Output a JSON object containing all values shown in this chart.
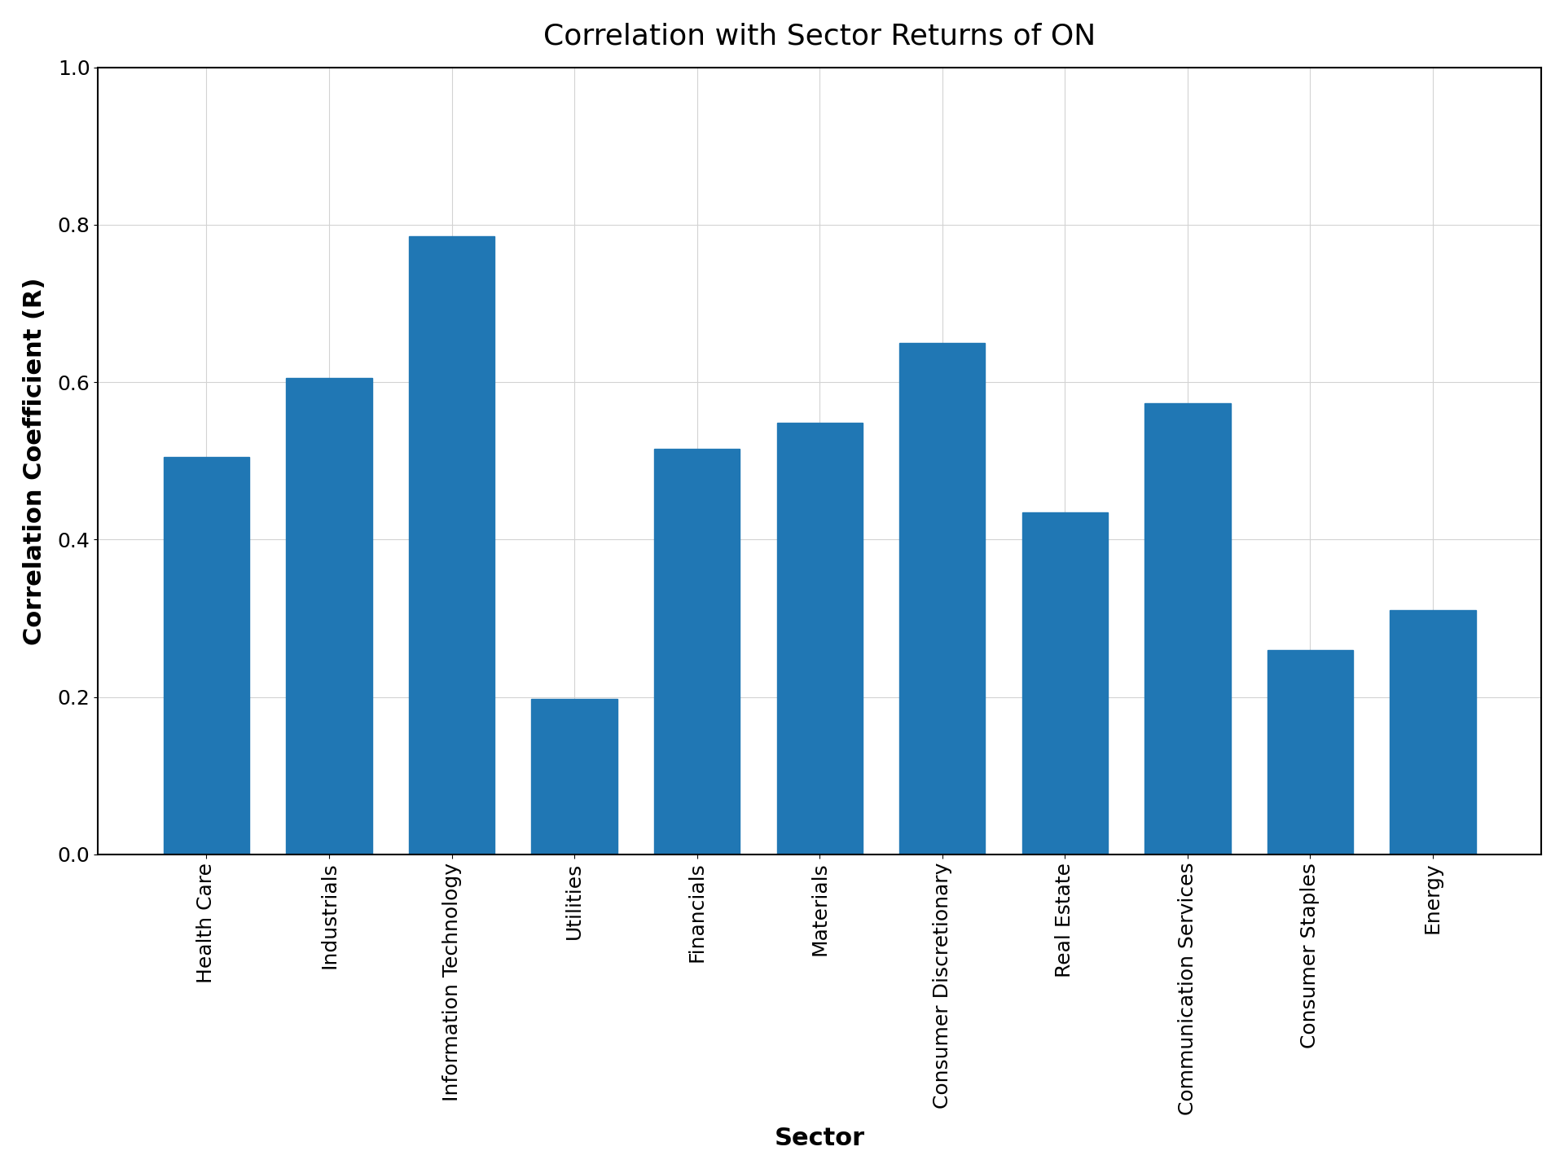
{
  "title": "Correlation with Sector Returns of ON",
  "xlabel": "Sector",
  "ylabel": "Correlation Coefficient (R)",
  "categories": [
    "Health Care",
    "Industrials",
    "Information Technology",
    "Utilities",
    "Financials",
    "Materials",
    "Consumer Discretionary",
    "Real Estate",
    "Communication Services",
    "Consumer Staples",
    "Energy"
  ],
  "values": [
    0.505,
    0.605,
    0.785,
    0.198,
    0.515,
    0.548,
    0.65,
    0.435,
    0.573,
    0.26,
    0.31
  ],
  "bar_color": "#2077b4",
  "ylim": [
    0.0,
    1.0
  ],
  "yticks": [
    0.0,
    0.2,
    0.4,
    0.6,
    0.8,
    1.0
  ],
  "title_fontsize": 26,
  "label_fontsize": 22,
  "tick_fontsize": 18,
  "figsize": [
    19.2,
    14.4
  ],
  "dpi": 100
}
